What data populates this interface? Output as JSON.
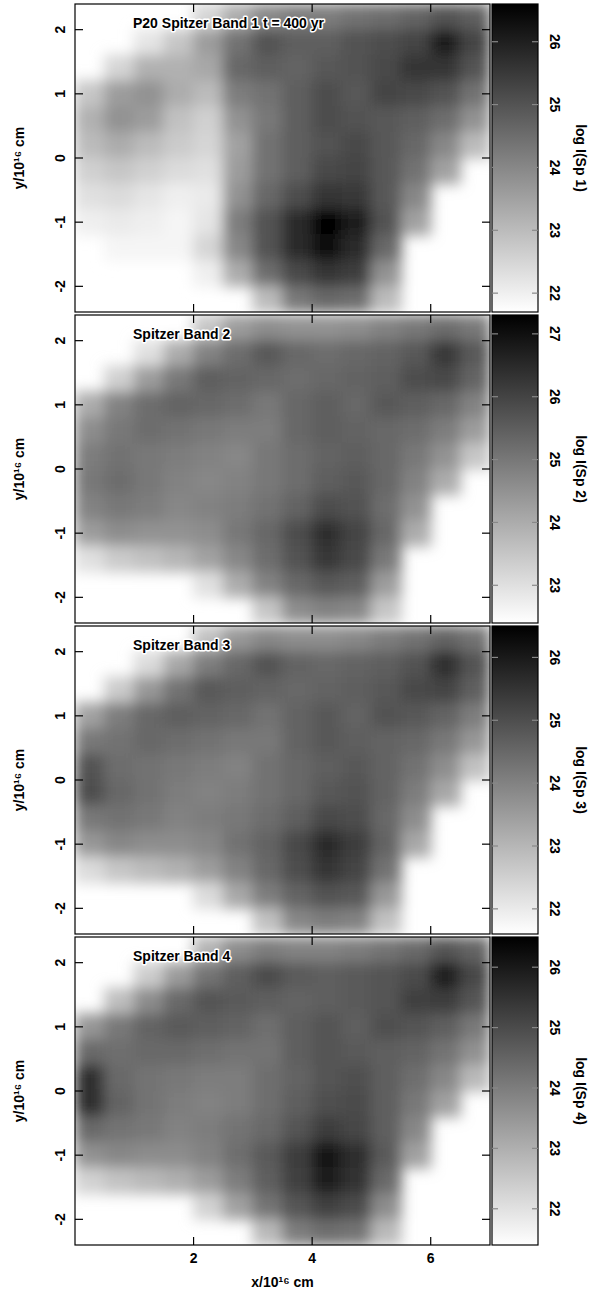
{
  "chart_data": [
    {
      "type": "heatmap",
      "title": "P20 Spitzer Band 1  t = 400 yr",
      "y_label": "y/10¹⁶ cm",
      "tick_labels": "y",
      "xlim": [
        0,
        7.0
      ],
      "ylim": [
        -2.4,
        2.4
      ],
      "xticks": [
        2,
        4,
        6
      ],
      "yticks": [
        -2,
        -1,
        0,
        1,
        2
      ],
      "x": [
        0.25,
        0.75,
        1.25,
        1.75,
        2.25,
        2.75,
        3.25,
        3.75,
        4.25,
        4.75,
        5.25,
        5.75,
        6.25,
        6.75
      ],
      "y": [
        2.2,
        1.8,
        1.4,
        1.0,
        0.6,
        0.2,
        -0.2,
        -0.6,
        -1.0,
        -1.4,
        -1.8,
        -2.2
      ],
      "cells": [
        [
          null,
          null,
          null,
          null,
          22.5,
          23.3,
          24.0,
          24.2,
          24.2,
          24.4,
          24.5,
          24.7,
          25.0,
          24.8
        ],
        [
          null,
          null,
          22.2,
          22.8,
          23.6,
          24.4,
          25.0,
          24.8,
          24.8,
          25.0,
          25.1,
          25.3,
          26.0,
          25.3
        ],
        [
          null,
          22.5,
          23.2,
          23.2,
          23.4,
          24.6,
          24.8,
          24.7,
          24.9,
          25.0,
          25.2,
          25.6,
          25.6,
          25.0
        ],
        [
          22.8,
          23.6,
          23.8,
          23.3,
          23.0,
          24.2,
          24.4,
          24.8,
          25.1,
          24.9,
          25.3,
          25.2,
          25.0,
          24.4
        ],
        [
          23.2,
          23.8,
          23.6,
          22.9,
          22.6,
          23.8,
          24.3,
          24.8,
          25.1,
          25.0,
          24.9,
          24.8,
          24.5,
          23.8
        ],
        [
          23.0,
          23.3,
          23.0,
          22.7,
          22.5,
          23.5,
          24.4,
          24.8,
          25.0,
          25.2,
          24.9,
          24.6,
          24.0,
          23.0
        ],
        [
          22.6,
          22.8,
          22.6,
          22.4,
          22.3,
          23.6,
          24.4,
          24.8,
          25.2,
          25.3,
          24.9,
          24.4,
          23.5,
          null
        ],
        [
          22.3,
          22.4,
          22.2,
          22.0,
          22.1,
          23.8,
          24.6,
          25.1,
          25.6,
          25.5,
          24.9,
          24.0,
          null,
          null
        ],
        [
          22.0,
          22.1,
          22.0,
          21.9,
          22.2,
          24.2,
          25.0,
          25.8,
          26.5,
          26.0,
          25.0,
          23.5,
          null,
          null
        ],
        [
          null,
          21.9,
          21.9,
          21.9,
          22.5,
          24.0,
          25.0,
          25.8,
          26.3,
          25.8,
          24.6,
          null,
          null,
          null
        ],
        [
          null,
          null,
          null,
          null,
          22.0,
          23.3,
          24.5,
          25.2,
          25.6,
          25.4,
          23.8,
          null,
          null,
          null
        ],
        [
          null,
          null,
          null,
          null,
          null,
          null,
          23.0,
          24.3,
          24.6,
          24.5,
          23.0,
          null,
          null,
          null
        ]
      ],
      "colorbar": {
        "label": "log I(Sp 1)",
        "range": [
          21.7,
          26.6
        ],
        "ticks": [
          22,
          23,
          24,
          25,
          26
        ]
      }
    },
    {
      "type": "heatmap",
      "title": "Spitzer Band 2",
      "y_label": "y/10¹⁶ cm",
      "tick_labels": "y",
      "xlim": [
        0,
        7.0
      ],
      "ylim": [
        -2.4,
        2.4
      ],
      "xticks": [
        2,
        4,
        6
      ],
      "yticks": [
        -2,
        -1,
        0,
        1,
        2
      ],
      "x": [
        0.25,
        0.75,
        1.25,
        1.75,
        2.25,
        2.75,
        3.25,
        3.75,
        4.25,
        4.75,
        5.25,
        5.75,
        6.25,
        6.75
      ],
      "y": [
        2.2,
        1.8,
        1.4,
        1.0,
        0.6,
        0.2,
        -0.2,
        -0.6,
        -1.0,
        -1.4,
        -1.8,
        -2.2
      ],
      "cells": [
        [
          null,
          null,
          null,
          null,
          23.5,
          24.3,
          24.6,
          24.5,
          24.5,
          24.6,
          24.8,
          25.0,
          25.2,
          25.0
        ],
        [
          null,
          null,
          23.0,
          24.0,
          24.8,
          25.2,
          25.6,
          25.3,
          25.2,
          25.3,
          25.4,
          25.6,
          26.2,
          25.6
        ],
        [
          null,
          23.3,
          24.3,
          25.0,
          25.5,
          25.4,
          25.3,
          25.2,
          25.3,
          25.4,
          25.5,
          25.8,
          25.9,
          25.4
        ],
        [
          24.0,
          24.8,
          25.2,
          25.4,
          25.3,
          25.2,
          25.0,
          25.3,
          25.5,
          25.3,
          25.6,
          25.5,
          25.3,
          24.8
        ],
        [
          24.6,
          25.0,
          25.2,
          25.1,
          25.0,
          24.9,
          24.9,
          25.3,
          25.5,
          25.4,
          25.3,
          25.2,
          24.9,
          24.3
        ],
        [
          24.9,
          25.1,
          25.0,
          24.9,
          24.8,
          24.7,
          25.0,
          25.2,
          25.4,
          25.5,
          25.3,
          25.0,
          24.5,
          23.5
        ],
        [
          25.0,
          25.2,
          25.0,
          24.8,
          24.7,
          24.8,
          25.0,
          25.2,
          25.5,
          25.6,
          25.3,
          24.8,
          24.0,
          null
        ],
        [
          24.8,
          25.0,
          24.9,
          24.7,
          24.8,
          24.9,
          25.1,
          25.4,
          25.8,
          25.7,
          25.2,
          24.5,
          null,
          null
        ],
        [
          24.3,
          24.6,
          24.5,
          24.5,
          24.6,
          25.0,
          25.3,
          25.8,
          26.4,
          26.0,
          25.3,
          24.0,
          null,
          null
        ],
        [
          23.0,
          23.4,
          23.6,
          23.8,
          24.2,
          24.7,
          25.2,
          25.7,
          26.2,
          25.9,
          25.0,
          null,
          null,
          null
        ],
        [
          null,
          null,
          null,
          null,
          23.0,
          24.0,
          24.8,
          25.3,
          25.6,
          25.5,
          24.3,
          null,
          null,
          null
        ],
        [
          null,
          null,
          null,
          null,
          null,
          null,
          23.5,
          24.6,
          24.8,
          24.7,
          23.5,
          null,
          null,
          null
        ]
      ],
      "colorbar": {
        "label": "log I(Sp 2)",
        "range": [
          22.4,
          27.3
        ],
        "ticks": [
          23,
          24,
          25,
          26,
          27
        ]
      }
    },
    {
      "type": "heatmap",
      "title": "Spitzer Band 3",
      "y_label": "y/10¹⁶ cm",
      "tick_labels": "y",
      "xlim": [
        0,
        7.0
      ],
      "ylim": [
        -2.4,
        2.4
      ],
      "xticks": [
        2,
        4,
        6
      ],
      "yticks": [
        -2,
        -1,
        0,
        1,
        2
      ],
      "x": [
        0.25,
        0.75,
        1.25,
        1.75,
        2.25,
        2.75,
        3.25,
        3.75,
        4.25,
        4.75,
        5.25,
        5.75,
        6.25,
        6.75
      ],
      "y": [
        2.2,
        1.8,
        1.4,
        1.0,
        0.6,
        0.2,
        -0.2,
        -0.6,
        -1.0,
        -1.4,
        -1.8,
        -2.2
      ],
      "cells": [
        [
          null,
          null,
          null,
          null,
          22.8,
          23.6,
          23.9,
          23.8,
          23.8,
          23.9,
          24.1,
          24.3,
          24.6,
          24.3
        ],
        [
          null,
          null,
          22.3,
          23.3,
          24.1,
          24.5,
          24.9,
          24.6,
          24.5,
          24.6,
          24.7,
          24.9,
          25.6,
          24.9
        ],
        [
          null,
          22.6,
          23.6,
          24.3,
          24.8,
          24.7,
          24.6,
          24.5,
          24.6,
          24.7,
          24.8,
          25.1,
          25.2,
          24.7
        ],
        [
          23.4,
          24.1,
          24.5,
          24.7,
          24.6,
          24.5,
          24.3,
          24.6,
          24.8,
          24.6,
          24.9,
          24.8,
          24.6,
          24.1
        ],
        [
          24.2,
          24.3,
          24.5,
          24.4,
          24.3,
          24.2,
          24.2,
          24.6,
          24.8,
          24.7,
          24.6,
          24.5,
          24.2,
          23.6
        ],
        [
          24.9,
          24.4,
          24.3,
          24.2,
          24.1,
          24.0,
          24.3,
          24.5,
          24.7,
          24.8,
          24.6,
          24.3,
          23.8,
          22.8
        ],
        [
          25.0,
          24.5,
          24.3,
          24.1,
          24.0,
          24.1,
          24.3,
          24.5,
          24.8,
          24.9,
          24.6,
          24.1,
          23.3,
          null
        ],
        [
          24.2,
          24.3,
          24.2,
          24.0,
          24.1,
          24.2,
          24.4,
          24.7,
          25.1,
          25.0,
          24.5,
          23.8,
          null,
          null
        ],
        [
          23.6,
          23.9,
          23.8,
          23.8,
          23.9,
          24.3,
          24.6,
          25.1,
          25.7,
          25.3,
          24.6,
          23.3,
          null,
          null
        ],
        [
          22.3,
          22.7,
          22.9,
          23.1,
          23.5,
          24.0,
          24.5,
          25.0,
          25.5,
          25.2,
          24.3,
          null,
          null,
          null
        ],
        [
          null,
          null,
          null,
          null,
          22.3,
          23.3,
          24.1,
          24.6,
          24.9,
          24.8,
          23.6,
          null,
          null,
          null
        ],
        [
          null,
          null,
          null,
          null,
          null,
          null,
          22.8,
          23.9,
          24.1,
          24.0,
          22.8,
          null,
          null,
          null
        ]
      ],
      "colorbar": {
        "label": "log I(Sp 3)",
        "range": [
          21.6,
          26.5
        ],
        "ticks": [
          22,
          23,
          24,
          25,
          26
        ]
      }
    },
    {
      "type": "heatmap",
      "title": "Spitzer Band 4",
      "x_label": "x/10¹⁶ cm",
      "y_label": "y/10¹⁶ cm",
      "xlim": [
        0,
        7.0
      ],
      "ylim": [
        -2.4,
        2.4
      ],
      "xticks": [
        2,
        4,
        6
      ],
      "yticks": [
        -2,
        -1,
        0,
        1,
        2
      ],
      "x": [
        0.25,
        0.75,
        1.25,
        1.75,
        2.25,
        2.75,
        3.25,
        3.75,
        4.25,
        4.75,
        5.25,
        5.75,
        6.25,
        6.75
      ],
      "y": [
        2.2,
        1.8,
        1.4,
        1.0,
        0.6,
        0.2,
        -0.2,
        -0.6,
        -1.0,
        -1.4,
        -1.8,
        -2.2
      ],
      "cells": [
        [
          null,
          null,
          null,
          null,
          22.9,
          23.7,
          24.0,
          23.9,
          23.9,
          24.0,
          24.2,
          24.4,
          24.8,
          24.5
        ],
        [
          null,
          null,
          22.4,
          23.4,
          24.2,
          24.6,
          25.0,
          24.7,
          24.6,
          24.7,
          24.8,
          25.0,
          25.9,
          25.1
        ],
        [
          null,
          22.7,
          23.7,
          24.4,
          24.8,
          24.7,
          24.6,
          24.5,
          24.6,
          24.7,
          24.8,
          25.2,
          25.3,
          24.8
        ],
        [
          23.5,
          24.1,
          24.5,
          24.7,
          24.6,
          24.5,
          24.3,
          24.6,
          24.8,
          24.6,
          24.9,
          24.8,
          24.6,
          24.1
        ],
        [
          24.4,
          24.3,
          24.4,
          24.4,
          24.3,
          24.2,
          24.2,
          24.6,
          24.8,
          24.7,
          24.6,
          24.5,
          24.2,
          23.6
        ],
        [
          25.6,
          24.4,
          24.2,
          24.1,
          24.0,
          24.0,
          24.3,
          24.5,
          24.8,
          24.9,
          24.6,
          24.3,
          23.8,
          22.8
        ],
        [
          25.6,
          24.5,
          24.2,
          24.0,
          23.9,
          24.0,
          24.3,
          24.6,
          24.9,
          25.0,
          24.6,
          24.1,
          23.3,
          null
        ],
        [
          24.4,
          24.2,
          24.1,
          23.9,
          24.0,
          24.2,
          24.4,
          24.8,
          25.3,
          25.1,
          24.6,
          23.8,
          null,
          null
        ],
        [
          23.6,
          23.8,
          23.7,
          23.7,
          23.9,
          24.3,
          24.7,
          25.3,
          26.0,
          25.6,
          24.7,
          23.3,
          null,
          null
        ],
        [
          22.3,
          22.6,
          22.8,
          23.0,
          23.4,
          24.0,
          24.6,
          25.2,
          25.9,
          25.5,
          24.4,
          null,
          null,
          null
        ],
        [
          null,
          null,
          null,
          null,
          22.3,
          23.3,
          24.2,
          24.8,
          25.2,
          25.0,
          23.7,
          null,
          null,
          null
        ],
        [
          null,
          null,
          null,
          null,
          null,
          null,
          22.8,
          24.0,
          24.3,
          24.2,
          22.8,
          null,
          null,
          null
        ]
      ],
      "colorbar": {
        "label": "log I(Sp 4)",
        "range": [
          21.4,
          26.5
        ],
        "ticks": [
          22,
          23,
          24,
          25,
          26
        ]
      }
    }
  ]
}
